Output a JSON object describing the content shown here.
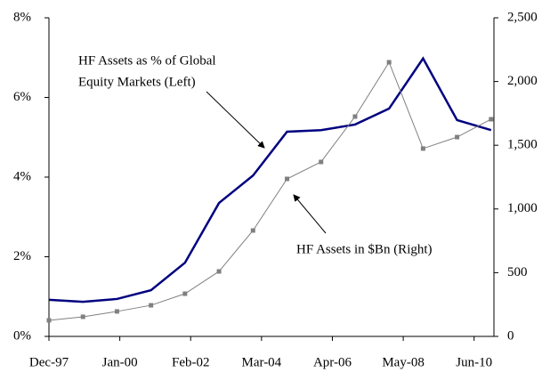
{
  "chart_data": {
    "type": "line",
    "x": [
      "1997-12",
      "1998-12",
      "1999-12",
      "2000-12",
      "2001-12",
      "2002-12",
      "2003-12",
      "2004-12",
      "2005-12",
      "2006-12",
      "2007-12",
      "2008-12",
      "2009-12",
      "2010-12"
    ],
    "xlim": [
      "1997-12",
      "2011-01"
    ],
    "xticks": [
      {
        "value": "1997-12",
        "label": "Dec-97"
      },
      {
        "value": "2000-01",
        "label": "Jan-00"
      },
      {
        "value": "2002-02",
        "label": "Feb-02"
      },
      {
        "value": "2004-03",
        "label": "Mar-04"
      },
      {
        "value": "2006-04",
        "label": "Apr-06"
      },
      {
        "value": "2008-05",
        "label": "May-08"
      },
      {
        "value": "2010-06",
        "label": "Jun-10"
      }
    ],
    "series": [
      {
        "name": "HF Assets as % of Global Equity Markets (Left)",
        "color": "#000080",
        "axis": "y",
        "values": [
          0.92,
          0.87,
          0.94,
          1.16,
          1.85,
          3.35,
          4.04,
          5.14,
          5.18,
          5.32,
          5.72,
          6.98,
          5.43,
          5.18
        ]
      },
      {
        "name": "HF Assets in $Bn (Right)",
        "color": "#808080",
        "axis": "y2",
        "marker": "square",
        "values": [
          126,
          154,
          196,
          244,
          335,
          510,
          831,
          1236,
          1369,
          1725,
          2151,
          1474,
          1564,
          1704
        ]
      }
    ],
    "annotations": [
      {
        "lines": [
          "HF Assets as % of Global",
          "Equity Markets (Left)"
        ]
      },
      {
        "lines": [
          "HF Assets in $Bn (Right)"
        ]
      }
    ],
    "ylim": [
      0,
      8
    ],
    "yticks": [
      {
        "value": 0,
        "label": "0%"
      },
      {
        "value": 2,
        "label": "2%"
      },
      {
        "value": 4,
        "label": "4%"
      },
      {
        "value": 6,
        "label": "6%"
      },
      {
        "value": 8,
        "label": "8%"
      }
    ],
    "y2lim": [
      0,
      2500
    ],
    "y2ticks": [
      0,
      500,
      {
        "value": 1000,
        "label": "1,000"
      },
      {
        "value": 1500,
        "label": "1,500"
      },
      {
        "value": 2000,
        "label": "2,000"
      },
      {
        "value": 2500,
        "label": "2,500"
      }
    ],
    "grid": false
  }
}
